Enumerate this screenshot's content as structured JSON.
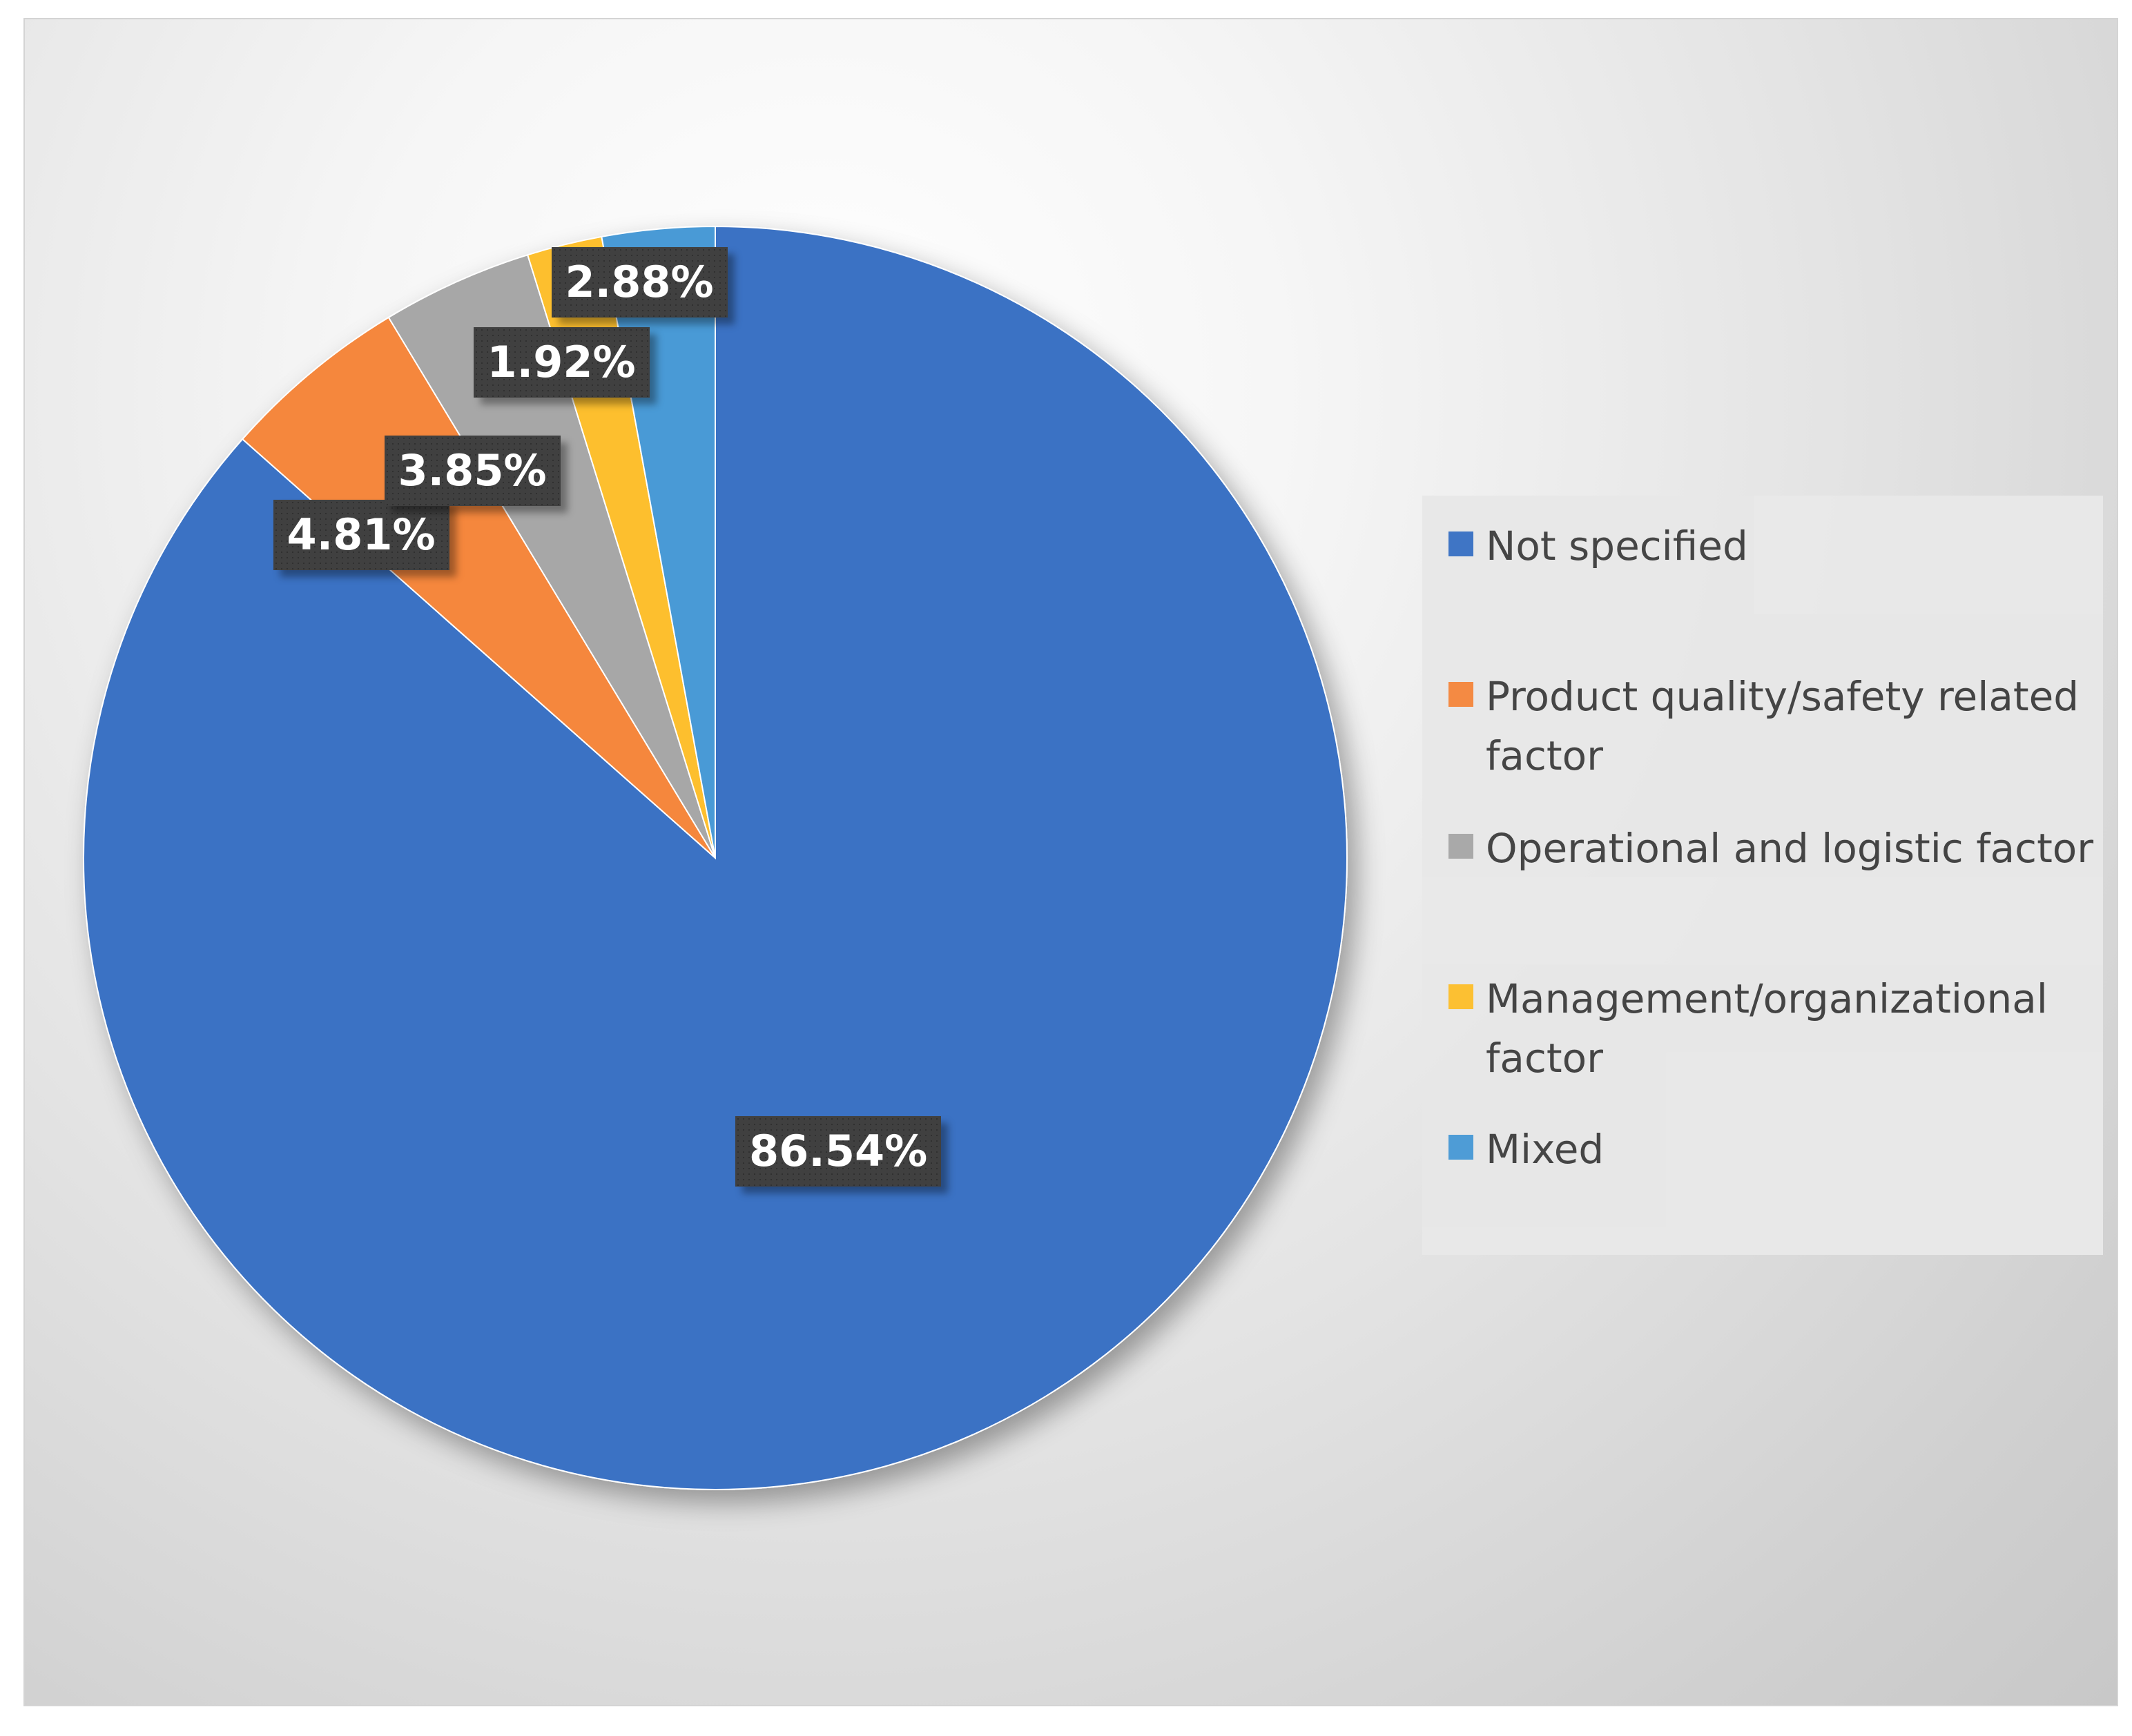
{
  "chart_data": {
    "type": "pie",
    "categories": [
      "Not specified",
      "Product quality/safety related factor",
      "Operational and logistic factor",
      "Management/organizational factor",
      "Mixed"
    ],
    "values": [
      86.54,
      4.81,
      3.85,
      1.92,
      2.88
    ],
    "data_labels": [
      "86.54%",
      "4.81%",
      "3.85%",
      "1.92%",
      "2.88%"
    ],
    "colors": [
      "#3A72C4",
      "#F5873E",
      "#A7A7A7",
      "#FDBF2D",
      "#4A9AD6"
    ],
    "start_angle_deg": 0,
    "direction": "clockwise",
    "legend_placement": "right",
    "title": ""
  },
  "legend": {
    "items": [
      {
        "label": "Not specified",
        "color": "#3A72C4"
      },
      {
        "label": "Product quality/safety related factor",
        "color": "#F5873E"
      },
      {
        "label": "Operational and logistic factor",
        "color": "#A7A7A7"
      },
      {
        "label": "Management/organizational factor",
        "color": "#FDBF2D"
      },
      {
        "label": "Mixed",
        "color": "#4A9AD6"
      }
    ]
  }
}
